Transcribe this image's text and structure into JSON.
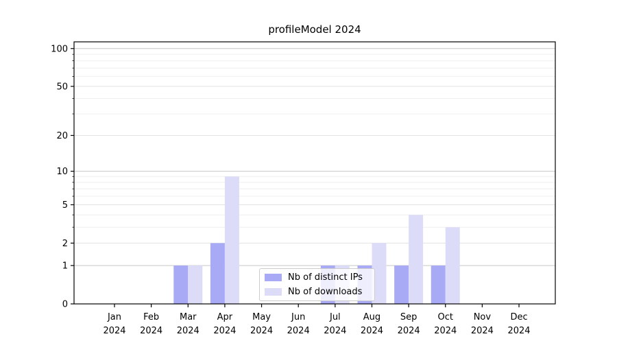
{
  "chart_data": {
    "type": "bar",
    "title": "profileModel 2024",
    "categories": [
      "Jan",
      "Feb",
      "Mar",
      "Apr",
      "May",
      "Jun",
      "Jul",
      "Aug",
      "Sep",
      "Oct",
      "Nov",
      "Dec"
    ],
    "x_tick_year": "2024",
    "series": [
      {
        "name": "Nb of distinct IPs",
        "color": "#a9aaf6",
        "values": [
          0,
          0,
          1,
          2,
          0,
          0,
          1,
          1,
          1,
          1,
          0,
          0
        ]
      },
      {
        "name": "Nb of downloads",
        "color": "#dcdcf8",
        "values": [
          0,
          0,
          1,
          9,
          0,
          0,
          1,
          2,
          4,
          3,
          0,
          0
        ]
      }
    ],
    "y_scale": "log1p",
    "ylim": [
      0,
      113
    ],
    "y_ticks": [
      0,
      1,
      2,
      5,
      10,
      20,
      50,
      100
    ],
    "y_minor_gridlines": [
      3,
      4,
      6,
      7,
      8,
      9,
      30,
      40,
      60,
      70,
      80,
      90
    ],
    "grid": true,
    "legend_position": "lower-center",
    "colors": {
      "gridline_power10": "#c6c6c6",
      "gridline_tick": "#e2e2e2",
      "gridline_minor": "#efefef",
      "spine": "#000000",
      "tick_text": "#000000"
    }
  }
}
